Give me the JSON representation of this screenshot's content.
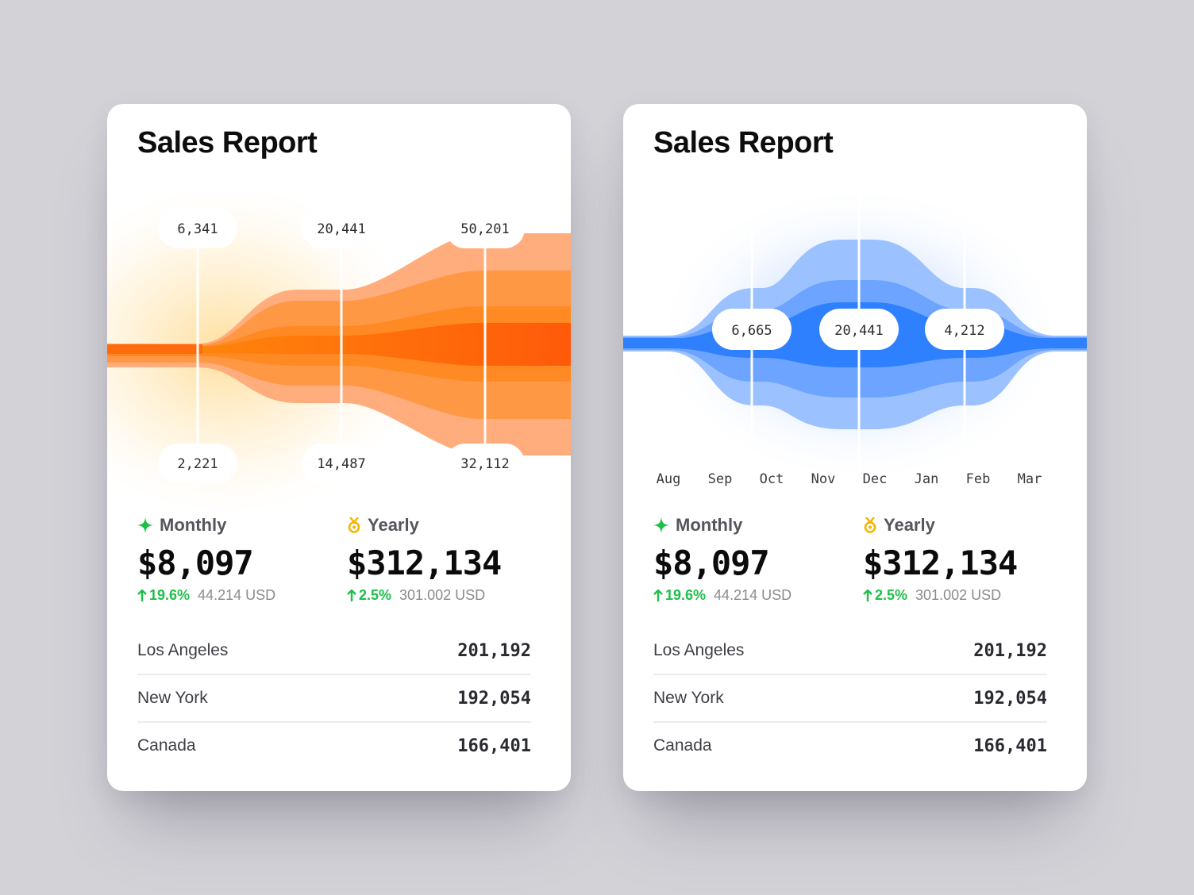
{
  "cards": [
    {
      "title": "Sales Report",
      "theme": {
        "accent": "#ff6b0a",
        "glow": "#ffd98a"
      },
      "chart_data": {
        "type": "area",
        "style": "stacked-stream-funnel",
        "checkpoints": [
          {
            "top_label": "6,341",
            "bottom_label": "2,221"
          },
          {
            "top_label": "20,441",
            "bottom_label": "14,487"
          },
          {
            "top_label": "50,201",
            "bottom_label": "32,112"
          }
        ]
      },
      "stats": {
        "monthly": {
          "label": "Monthly",
          "value": "$8,097",
          "growth": "19.6%",
          "usd": "44.214 USD",
          "icon": "sparkle-icon"
        },
        "yearly": {
          "label": "Yearly",
          "value": "$312,134",
          "growth": "2.5%",
          "usd": "301.002 USD",
          "icon": "medal-icon"
        }
      },
      "locations": [
        {
          "name": "Los Angeles",
          "value": "201,192"
        },
        {
          "name": "New York",
          "value": "192,054"
        },
        {
          "name": "Canada",
          "value": "166,401"
        }
      ]
    },
    {
      "title": "Sales Report",
      "theme": {
        "accent": "#2f80ff",
        "glow": "#cfe0ff"
      },
      "chart_data": {
        "type": "area",
        "style": "stacked-stream-bulge",
        "x": [
          "Aug",
          "Sep",
          "Oct",
          "Nov",
          "Dec",
          "Jan",
          "Feb",
          "Mar"
        ],
        "markers": [
          {
            "label": "6,665"
          },
          {
            "label": "20,441"
          },
          {
            "label": "4,212"
          }
        ]
      },
      "stats": {
        "monthly": {
          "label": "Monthly",
          "value": "$8,097",
          "growth": "19.6%",
          "usd": "44.214 USD",
          "icon": "sparkle-icon"
        },
        "yearly": {
          "label": "Yearly",
          "value": "$312,134",
          "growth": "2.5%",
          "usd": "301.002 USD",
          "icon": "medal-icon"
        }
      },
      "locations": [
        {
          "name": "Los Angeles",
          "value": "201,192"
        },
        {
          "name": "New York",
          "value": "192,054"
        },
        {
          "name": "Canada",
          "value": "166,401"
        }
      ]
    }
  ]
}
